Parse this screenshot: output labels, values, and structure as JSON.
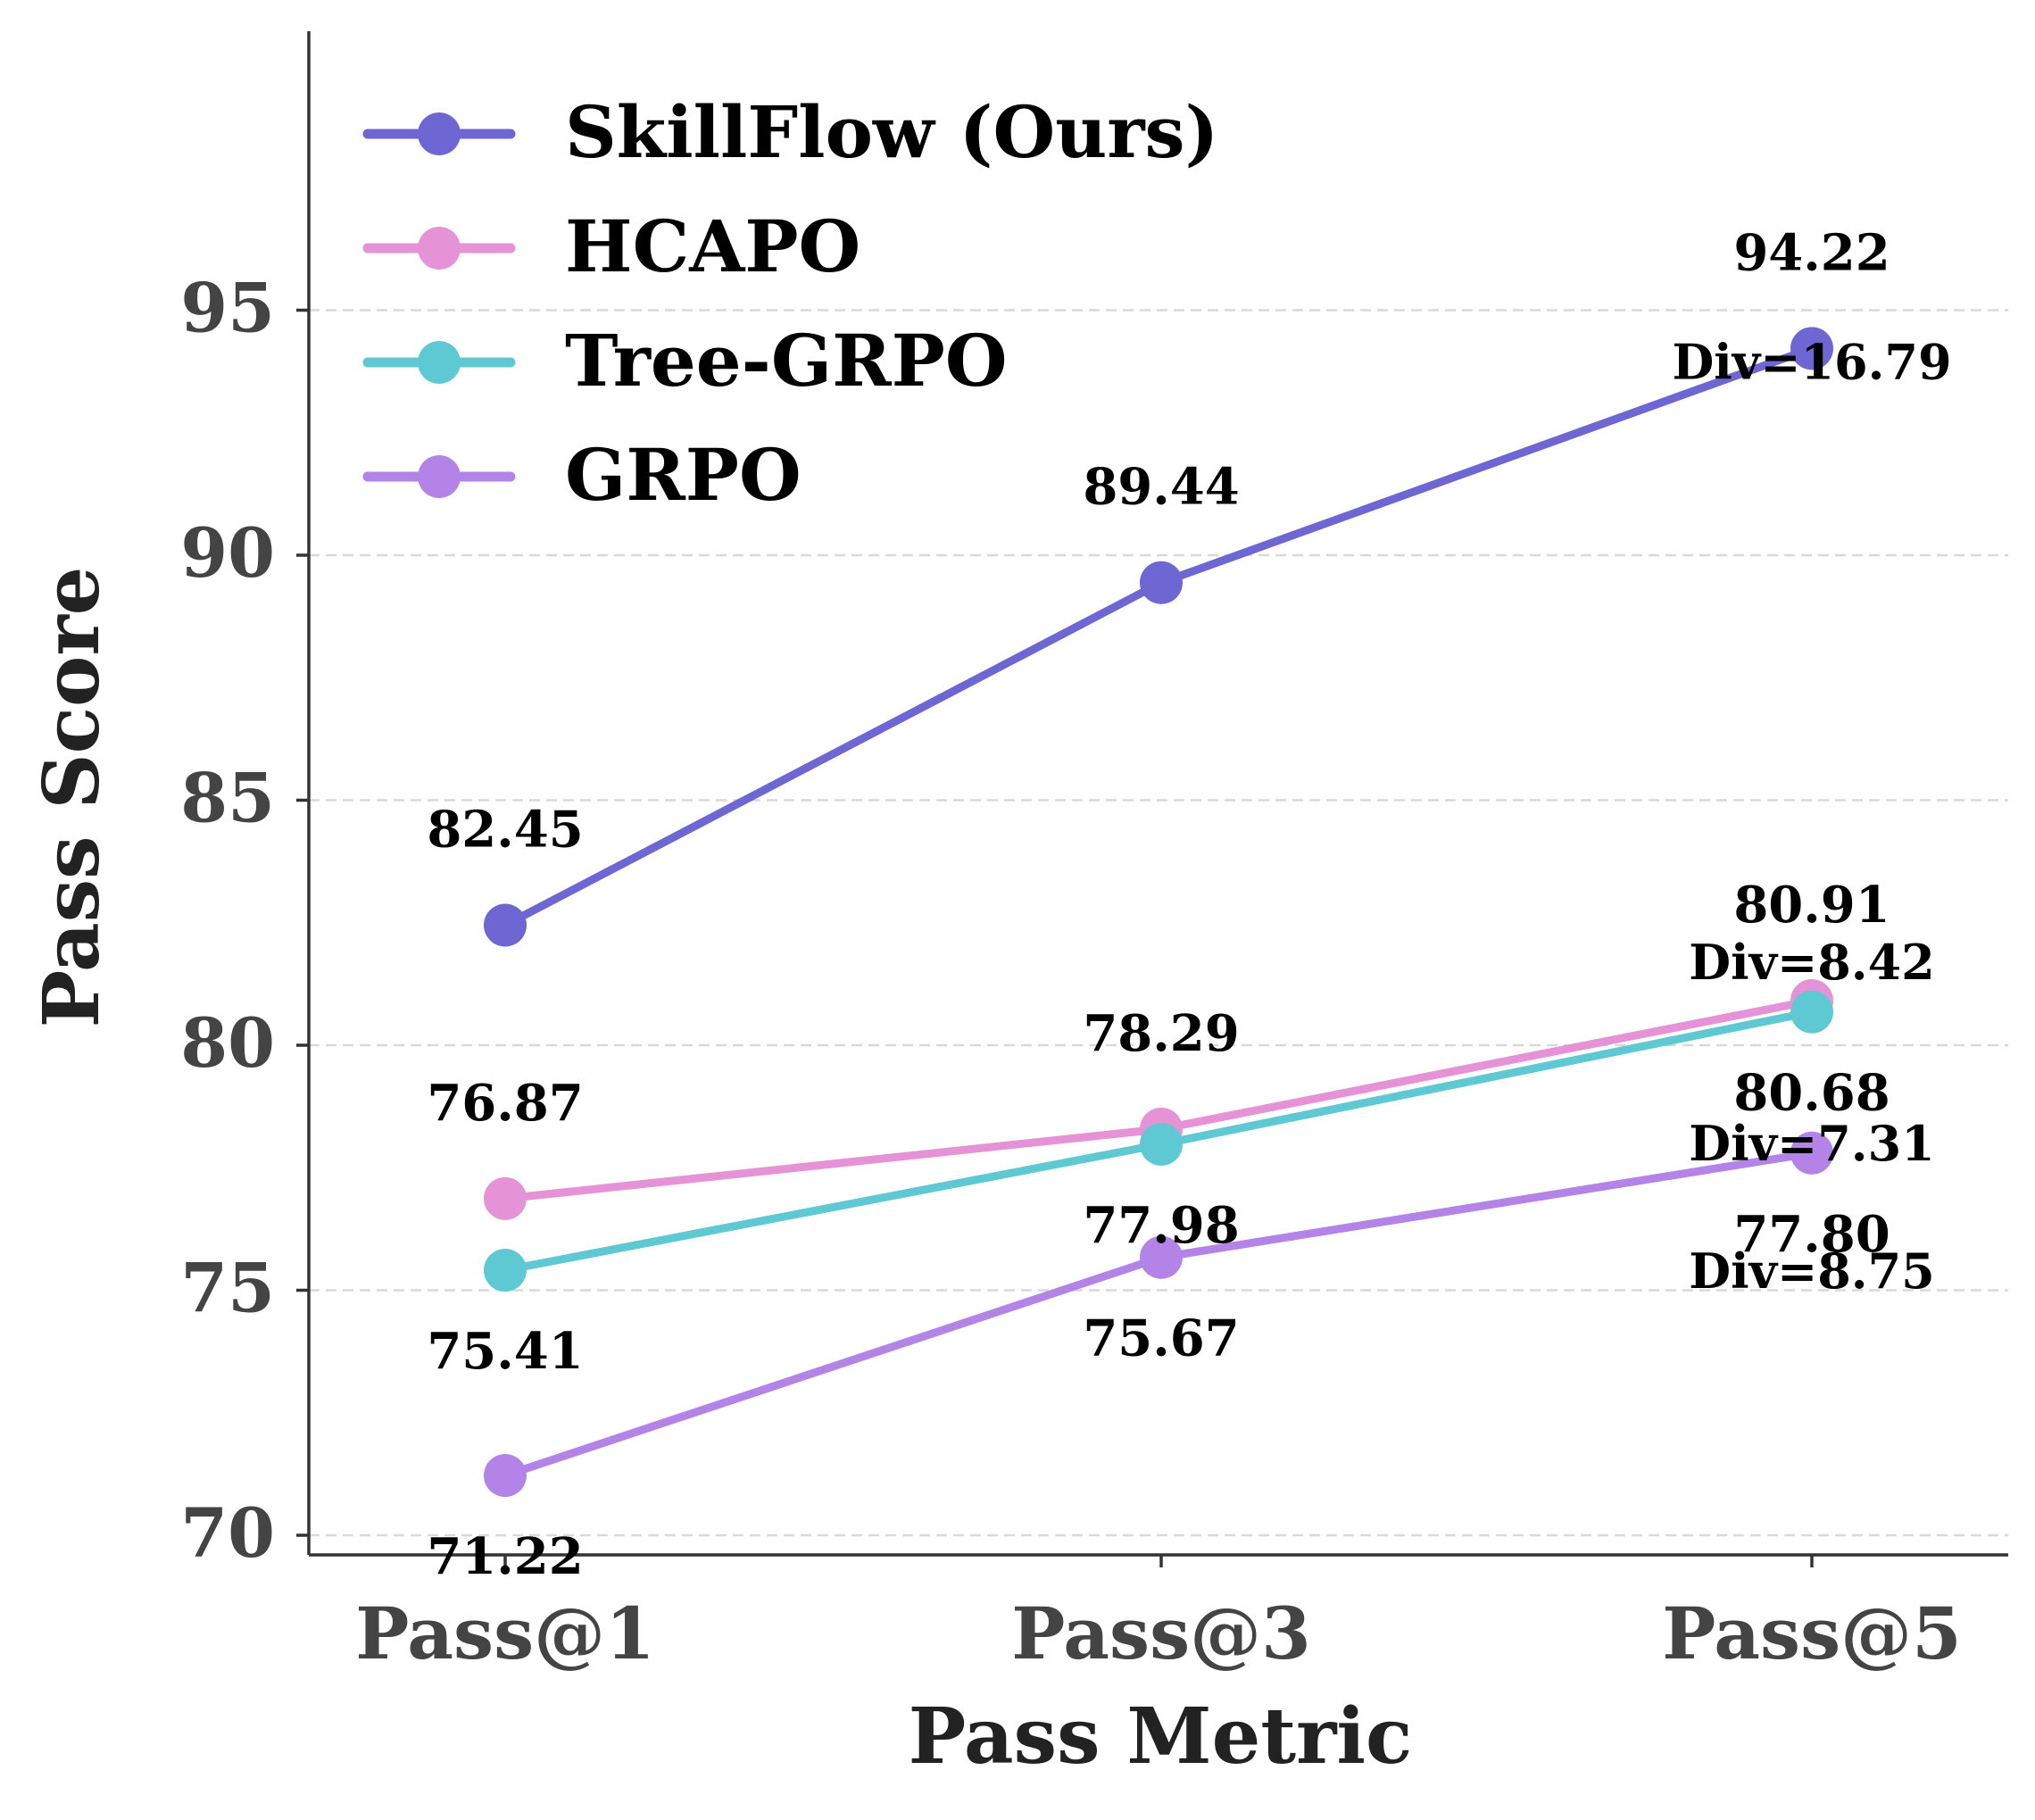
{
  "chart_data": {
    "type": "line",
    "xlabel": "Pass Metric",
    "ylabel": "Pass Score",
    "categories": [
      "Pass@1",
      "Pass@3",
      "Pass@5"
    ],
    "ylim": [
      68,
      99
    ],
    "yticks": [
      70,
      75,
      80,
      85,
      90,
      95
    ],
    "grid": "horizontal dashed",
    "legend_position": "top-left",
    "series": [
      {
        "name": "SkillFlow (Ours)",
        "color": "#6e66d3",
        "values": [
          82.45,
          89.44,
          94.22
        ],
        "labels": [
          "82.45",
          "89.44",
          "94.22"
        ]
      },
      {
        "name": "HCAPO",
        "color": "#e592d6",
        "values": [
          76.87,
          78.29,
          80.91
        ],
        "labels": [
          "76.87",
          "78.29",
          "80.91"
        ]
      },
      {
        "name": "Tree-GRPO",
        "color": "#5fc9d3",
        "values": [
          75.41,
          77.98,
          80.68
        ],
        "labels": [
          "75.41",
          "77.98",
          "80.68"
        ]
      },
      {
        "name": "GRPO",
        "color": "#b483e8",
        "values": [
          71.22,
          75.67,
          77.8
        ],
        "labels": [
          "71.22",
          "75.67",
          "77.80"
        ]
      }
    ],
    "annotations": [
      {
        "text": "Div=16.79",
        "x": 2.5,
        "y": 93.6
      },
      {
        "text": "Div=8.42",
        "x": 2.5,
        "y": 81.35
      },
      {
        "text": "Div=7.31",
        "x": 2.5,
        "y": 77.65
      },
      {
        "text": "Div=8.75",
        "x": 2.5,
        "y": 75.05
      }
    ]
  }
}
